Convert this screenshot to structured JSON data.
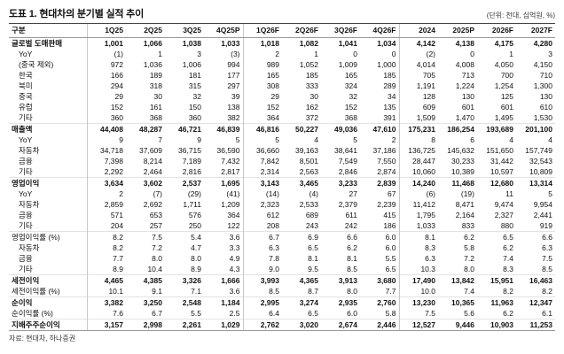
{
  "header": {
    "title": "도표 1. 현대차의 분기별 실적 추이",
    "unit_note": "(단위: 천대, 십억원, %)"
  },
  "table": {
    "columns": [
      "구분",
      "1Q25",
      "2Q25",
      "3Q25",
      "4Q25P",
      "1Q26F",
      "2Q26F",
      "3Q26F",
      "4Q26F",
      "2024",
      "2025P",
      "2026F",
      "2027F"
    ],
    "group_starts": [
      1,
      5,
      9
    ],
    "rows": [
      {
        "label": "글로벌 도매판매",
        "indent": false,
        "bold": true,
        "section": false,
        "values": [
          "1,001",
          "1,066",
          "1,038",
          "1,033",
          "1,018",
          "1,082",
          "1,041",
          "1,034",
          "4,142",
          "4,138",
          "4,175",
          "4,280"
        ]
      },
      {
        "label": "YoY",
        "indent": true,
        "bold": false,
        "section": false,
        "values": [
          "(1)",
          "1",
          "3",
          "(3)",
          "2",
          "1",
          "0",
          "0",
          "(2)",
          "0",
          "1",
          "3"
        ]
      },
      {
        "label": "(중국 제외)",
        "indent": true,
        "bold": false,
        "section": false,
        "values": [
          "972",
          "1,036",
          "1,006",
          "994",
          "989",
          "1,052",
          "1,009",
          "1,000",
          "4,014",
          "4,008",
          "4,050",
          "4,150"
        ]
      },
      {
        "label": "한국",
        "indent": true,
        "bold": false,
        "section": false,
        "values": [
          "166",
          "189",
          "181",
          "177",
          "165",
          "185",
          "165",
          "185",
          "705",
          "713",
          "700",
          "710"
        ]
      },
      {
        "label": "북미",
        "indent": true,
        "bold": false,
        "section": false,
        "values": [
          "294",
          "318",
          "315",
          "297",
          "308",
          "333",
          "324",
          "289",
          "1,191",
          "1,224",
          "1,254",
          "1,300"
        ]
      },
      {
        "label": "중국",
        "indent": true,
        "bold": false,
        "section": false,
        "values": [
          "29",
          "30",
          "32",
          "39",
          "29",
          "30",
          "32",
          "34",
          "128",
          "130",
          "125",
          "130"
        ]
      },
      {
        "label": "유럽",
        "indent": true,
        "bold": false,
        "section": false,
        "values": [
          "152",
          "161",
          "150",
          "138",
          "152",
          "162",
          "152",
          "135",
          "609",
          "601",
          "601",
          "610"
        ]
      },
      {
        "label": "기타",
        "indent": true,
        "bold": false,
        "section": false,
        "values": [
          "360",
          "368",
          "360",
          "382",
          "364",
          "372",
          "368",
          "391",
          "1,509",
          "1,470",
          "1,495",
          "1,530"
        ]
      },
      {
        "label": "매출액",
        "indent": false,
        "bold": true,
        "section": true,
        "values": [
          "44,408",
          "48,287",
          "46,721",
          "46,839",
          "46,816",
          "50,227",
          "49,036",
          "47,610",
          "175,231",
          "186,254",
          "193,689",
          "201,100"
        ]
      },
      {
        "label": "YoY",
        "indent": true,
        "bold": false,
        "section": false,
        "values": [
          "9",
          "7",
          "9",
          "5",
          "5",
          "4",
          "5",
          "2",
          "8",
          "6",
          "4",
          "4"
        ]
      },
      {
        "label": "자동차",
        "indent": true,
        "bold": false,
        "section": false,
        "values": [
          "34,718",
          "37,609",
          "36,715",
          "36,590",
          "36,660",
          "39,163",
          "38,641",
          "37,186",
          "136,725",
          "145,632",
          "151,650",
          "157,749"
        ]
      },
      {
        "label": "금융",
        "indent": true,
        "bold": false,
        "section": false,
        "values": [
          "7,398",
          "8,214",
          "7,189",
          "7,432",
          "7,842",
          "8,501",
          "7,549",
          "7,550",
          "28,447",
          "30,233",
          "31,442",
          "32,543"
        ]
      },
      {
        "label": "기타",
        "indent": true,
        "bold": false,
        "section": false,
        "values": [
          "2,292",
          "2,464",
          "2,816",
          "2,817",
          "2,314",
          "2,563",
          "2,846",
          "2,874",
          "10,060",
          "10,389",
          "10,597",
          "10,809"
        ]
      },
      {
        "label": "영업이익",
        "indent": false,
        "bold": true,
        "section": true,
        "values": [
          "3,634",
          "3,602",
          "2,537",
          "1,695",
          "3,143",
          "3,465",
          "3,233",
          "2,839",
          "14,240",
          "11,468",
          "12,680",
          "13,314"
        ]
      },
      {
        "label": "YoY",
        "indent": true,
        "bold": false,
        "section": false,
        "values": [
          "2",
          "(7)",
          "(29)",
          "(41)",
          "(14)",
          "(4)",
          "27",
          "67",
          "(6)",
          "(19)",
          "11",
          "5"
        ]
      },
      {
        "label": "자동차",
        "indent": true,
        "bold": false,
        "section": false,
        "values": [
          "2,859",
          "2,692",
          "1,711",
          "1,209",
          "2,323",
          "2,533",
          "2,379",
          "2,239",
          "11,412",
          "8,471",
          "9,474",
          "9,954"
        ]
      },
      {
        "label": "금융",
        "indent": true,
        "bold": false,
        "section": false,
        "values": [
          "571",
          "653",
          "576",
          "364",
          "612",
          "689",
          "611",
          "415",
          "1,795",
          "2,164",
          "2,327",
          "2,441"
        ]
      },
      {
        "label": "기타",
        "indent": true,
        "bold": false,
        "section": false,
        "values": [
          "204",
          "257",
          "250",
          "122",
          "208",
          "243",
          "242",
          "186",
          "1,033",
          "833",
          "880",
          "919"
        ]
      },
      {
        "label": "영업이익률 (%)",
        "indent": false,
        "bold": false,
        "section": true,
        "values": [
          "8.2",
          "7.5",
          "5.4",
          "3.6",
          "6.7",
          "6.9",
          "6.6",
          "6.0",
          "8.1",
          "6.2",
          "6.5",
          "6.6"
        ]
      },
      {
        "label": "자동차",
        "indent": true,
        "bold": false,
        "section": false,
        "values": [
          "8.2",
          "7.2",
          "4.7",
          "3.3",
          "6.3",
          "6.5",
          "6.2",
          "6.0",
          "8.3",
          "5.8",
          "6.2",
          "6.3"
        ]
      },
      {
        "label": "금융",
        "indent": true,
        "bold": false,
        "section": false,
        "values": [
          "7.7",
          "8.0",
          "8.0",
          "4.9",
          "7.8",
          "8.1",
          "8.1",
          "5.5",
          "6.3",
          "7.2",
          "7.4",
          "7.5"
        ]
      },
      {
        "label": "기타",
        "indent": true,
        "bold": false,
        "section": false,
        "values": [
          "8.9",
          "10.4",
          "8.9",
          "4.3",
          "9.0",
          "9.5",
          "8.5",
          "6.5",
          "10.3",
          "8.0",
          "8.3",
          "8.5"
        ]
      },
      {
        "label": "세전이익",
        "indent": false,
        "bold": true,
        "section": true,
        "values": [
          "4,465",
          "4,385",
          "3,326",
          "1,666",
          "3,993",
          "4,365",
          "3,913",
          "3,680",
          "17,490",
          "13,842",
          "15,951",
          "16,463"
        ]
      },
      {
        "label": "세전이익률 (%)",
        "indent": false,
        "bold": false,
        "section": false,
        "values": [
          "10.1",
          "9.1",
          "7.1",
          "3.6",
          "8.5",
          "8.7",
          "8.0",
          "7.7",
          "10.0",
          "7.4",
          "8.2",
          "8.2"
        ]
      },
      {
        "label": "순이익",
        "indent": false,
        "bold": true,
        "section": true,
        "values": [
          "3,382",
          "3,250",
          "2,548",
          "1,184",
          "2,995",
          "3,274",
          "2,935",
          "2,760",
          "13,230",
          "10,365",
          "11,963",
          "12,347"
        ]
      },
      {
        "label": "순이익률 (%)",
        "indent": false,
        "bold": false,
        "section": false,
        "values": [
          "7.6",
          "6.7",
          "5.5",
          "2.5",
          "6.4",
          "6.5",
          "6.0",
          "5.8",
          "7.5",
          "5.6",
          "6.2",
          "6.1"
        ]
      },
      {
        "label": "지배주주순이익",
        "indent": false,
        "bold": true,
        "section": true,
        "values": [
          "3,157",
          "2,998",
          "2,261",
          "1,029",
          "2,762",
          "3,020",
          "2,674",
          "2,446",
          "12,527",
          "9,446",
          "10,903",
          "11,253"
        ]
      }
    ]
  },
  "footer": {
    "source": "자료: 현대차, 하나증권"
  }
}
